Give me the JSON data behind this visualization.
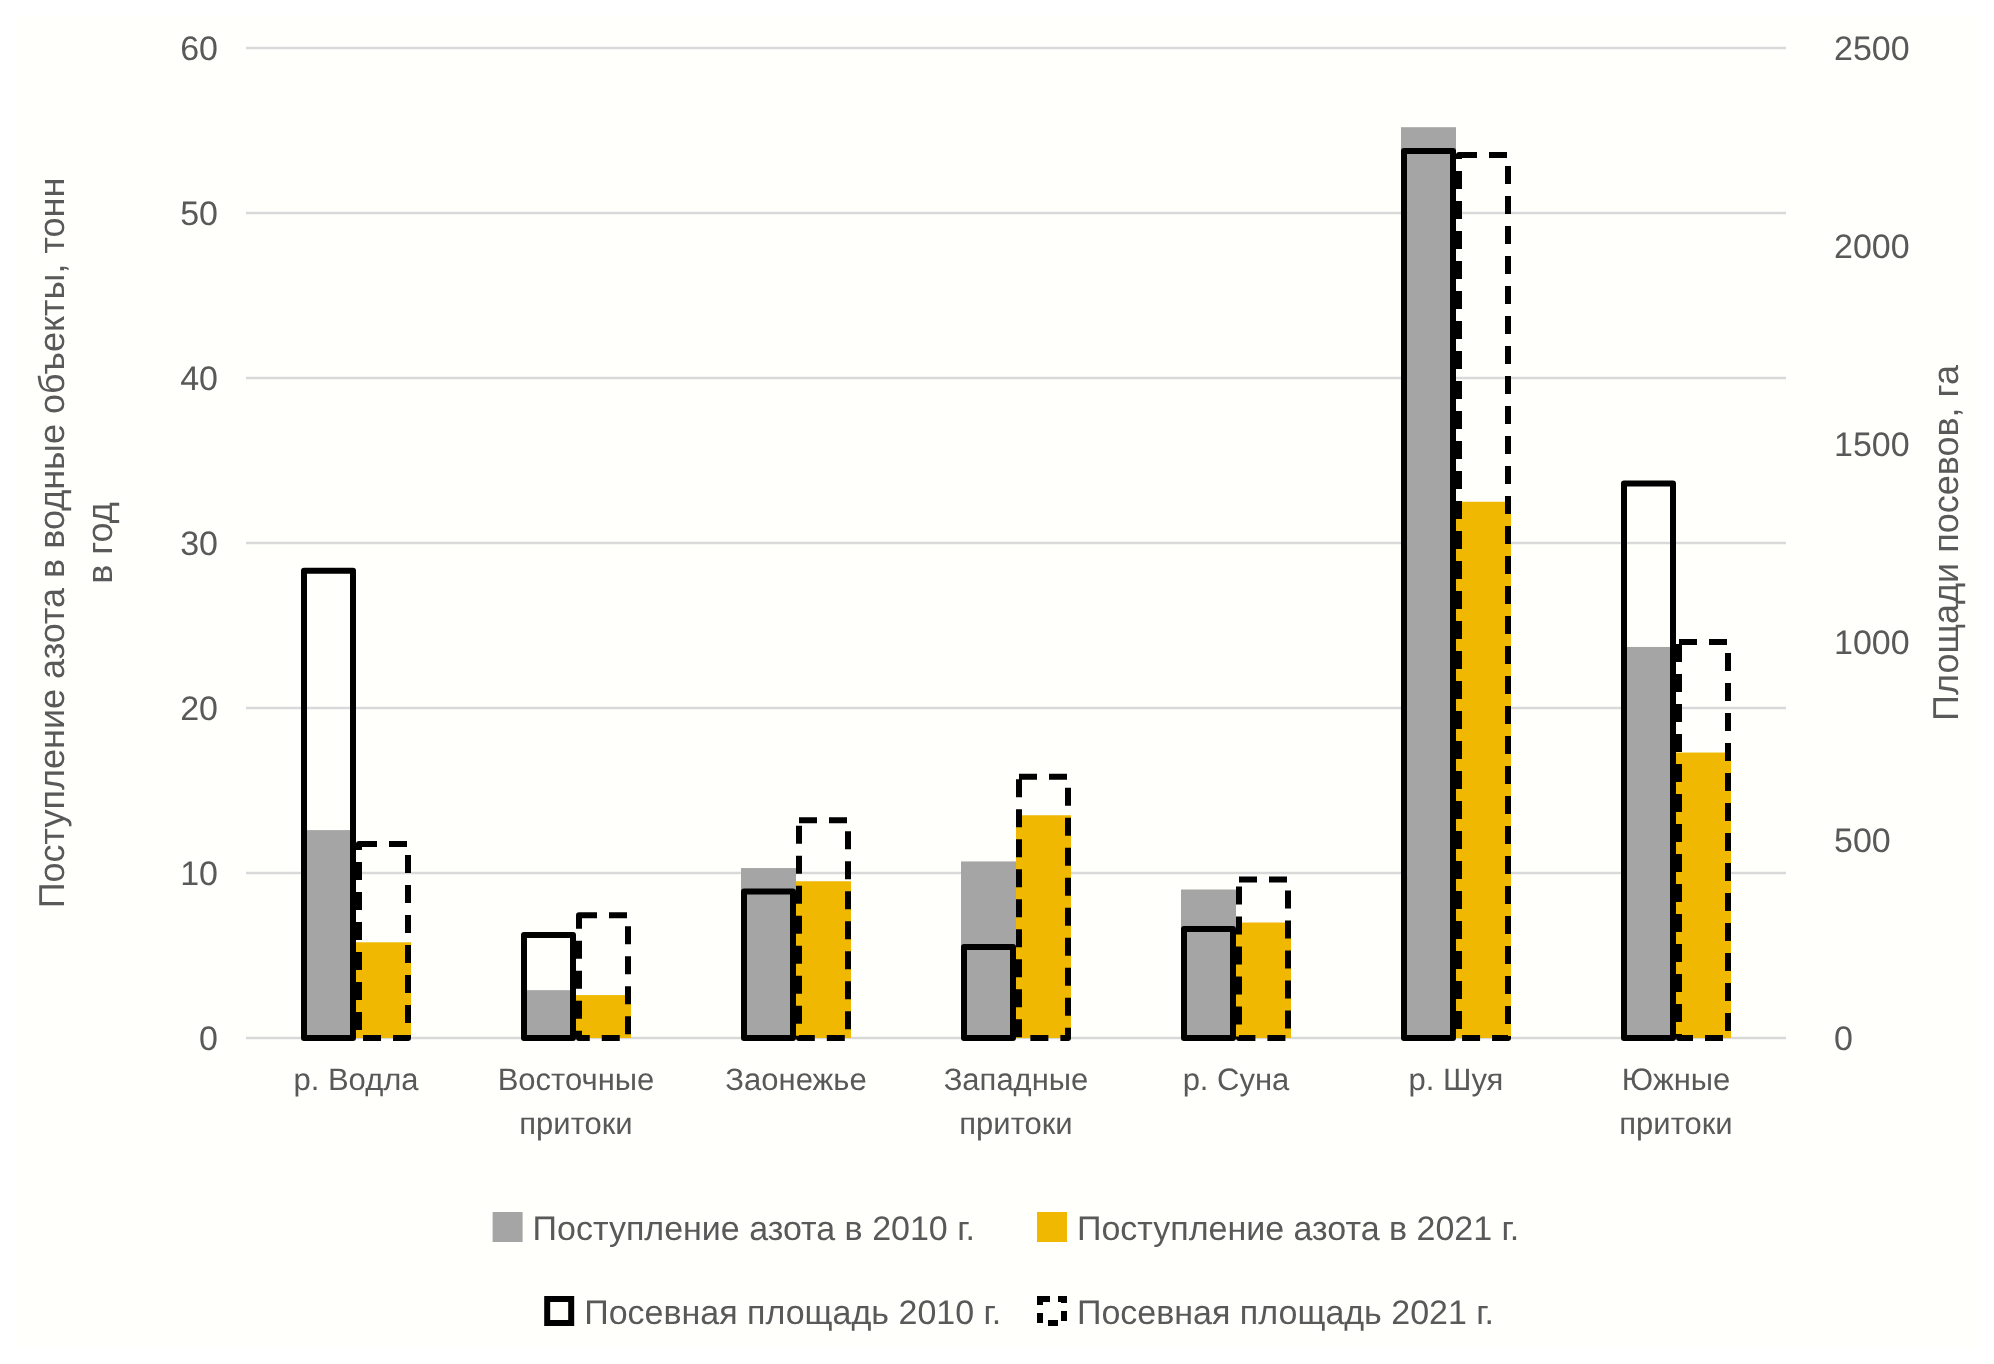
{
  "chart_data": {
    "type": "bar",
    "ylabel": "Поступление азота в водные объекты, тонн в год",
    "y2label": "Площади посевов, га",
    "categories": [
      "р. Водла",
      "Восточные притоки",
      "Заонежье",
      "Западные притоки",
      "р. Суна",
      "р. Шуя",
      "Южные притоки"
    ],
    "series": [
      {
        "name": "Поступление азота в 2010 г.",
        "color": "#a5a5a5",
        "values": [
          12.6,
          2.9,
          10.3,
          10.7,
          9.0,
          55.2,
          23.7
        ]
      },
      {
        "name": "Поступление азота в 2021 г.",
        "color": "#f0b800",
        "values": [
          5.8,
          2.6,
          9.5,
          13.5,
          7.0,
          32.5,
          17.3
        ]
      },
      {
        "name": "Посевная площадь 2010 г.",
        "color": "#000000",
        "axis": "y2",
        "line_style": "solid",
        "values": [
          1180,
          260,
          370,
          230,
          275,
          2240,
          1400
        ]
      },
      {
        "name": "Посевная площадь 2021 г.",
        "color": "#000000",
        "axis": "y2",
        "line_style": "dashed",
        "values": [
          490,
          310,
          550,
          660,
          400,
          2230,
          1000
        ]
      }
    ],
    "ylim": [
      0,
      60
    ],
    "yticks": [
      0,
      10,
      20,
      30,
      40,
      50,
      60
    ],
    "y2lim": [
      0,
      2500
    ],
    "y2ticks": [
      0,
      500,
      1000,
      1500,
      2000,
      2500
    ],
    "grid": "y",
    "legend": "bottom"
  }
}
